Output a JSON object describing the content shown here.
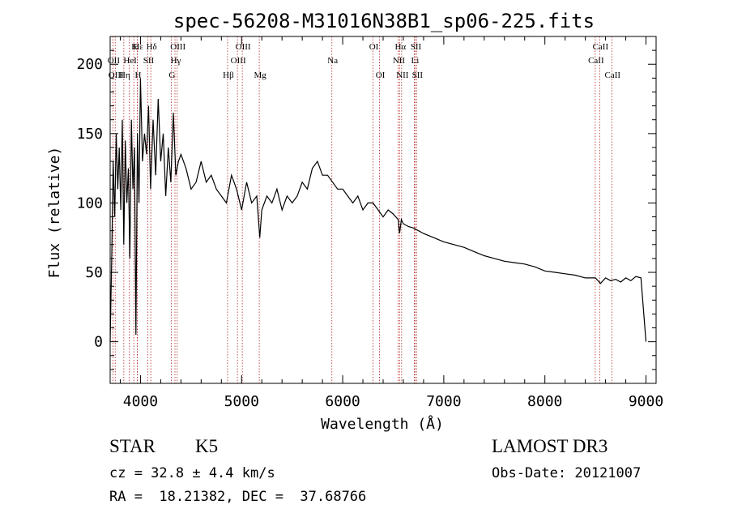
{
  "colors": {
    "axis": "#000000",
    "line": "#000000",
    "marker": "#b22222",
    "background": "#ffffff"
  },
  "info": {
    "object_class": "STAR",
    "subclass": "K5",
    "survey": "LAMOST DR3",
    "redshift": "cz = 32.8 ± 4.4 km/s",
    "obs_date": "Obs-Date: 20121007",
    "coords": "RA =  18.21382, DEC =  37.68766"
  },
  "chart_data": {
    "type": "line",
    "title": "spec-56208-M31016N38B1_sp06-225.fits",
    "xlabel": "Wavelength (Å)",
    "ylabel": "Flux (relative)",
    "xlim": [
      3700,
      9100
    ],
    "ylim": [
      -30,
      220
    ],
    "xticks": [
      4000,
      5000,
      6000,
      7000,
      8000,
      9000
    ],
    "xtick_labels": [
      "4000",
      "5000",
      "6000",
      "7000",
      "8000",
      "9000"
    ],
    "yticks": [
      0,
      50,
      100,
      150,
      200
    ],
    "ytick_labels": [
      "0",
      "50",
      "100",
      "150",
      "200"
    ],
    "grid": false,
    "series": [
      {
        "name": "spectrum",
        "x": [
          3700,
          3715,
          3730,
          3745,
          3760,
          3775,
          3790,
          3805,
          3820,
          3835,
          3850,
          3865,
          3880,
          3895,
          3910,
          3925,
          3940,
          3955,
          3970,
          3985,
          4000,
          4020,
          4040,
          4060,
          4080,
          4100,
          4125,
          4150,
          4175,
          4200,
          4225,
          4250,
          4275,
          4300,
          4325,
          4350,
          4375,
          4400,
          4450,
          4500,
          4550,
          4600,
          4650,
          4700,
          4750,
          4800,
          4850,
          4900,
          4950,
          5000,
          5050,
          5100,
          5150,
          5180,
          5200,
          5250,
          5300,
          5350,
          5400,
          5450,
          5500,
          5550,
          5600,
          5650,
          5700,
          5750,
          5800,
          5850,
          5900,
          5950,
          6000,
          6050,
          6100,
          6150,
          6200,
          6250,
          6300,
          6350,
          6400,
          6450,
          6500,
          6550,
          6563,
          6580,
          6600,
          6650,
          6700,
          6750,
          6800,
          6900,
          7000,
          7100,
          7200,
          7300,
          7400,
          7500,
          7600,
          7700,
          7800,
          7900,
          8000,
          8100,
          8200,
          8300,
          8400,
          8500,
          8550,
          8600,
          8650,
          8700,
          8750,
          8800,
          8850,
          8900,
          8950,
          9000
        ],
        "y": [
          0,
          60,
          130,
          90,
          150,
          110,
          140,
          95,
          160,
          70,
          145,
          100,
          125,
          60,
          160,
          110,
          140,
          5,
          150,
          100,
          190,
          130,
          150,
          135,
          170,
          110,
          160,
          120,
          175,
          130,
          150,
          105,
          140,
          115,
          165,
          120,
          130,
          135,
          125,
          110,
          115,
          130,
          115,
          120,
          110,
          105,
          100,
          120,
          110,
          95,
          115,
          100,
          105,
          75,
          95,
          105,
          100,
          110,
          95,
          105,
          100,
          105,
          115,
          110,
          125,
          130,
          120,
          120,
          115,
          110,
          110,
          105,
          100,
          105,
          95,
          100,
          100,
          95,
          90,
          95,
          92,
          88,
          78,
          88,
          85,
          83,
          82,
          80,
          78,
          75,
          72,
          70,
          68,
          65,
          62,
          60,
          58,
          57,
          56,
          54,
          51,
          50,
          49,
          48,
          46,
          46,
          42,
          46,
          44,
          45,
          43,
          46,
          44,
          47,
          46,
          0
        ]
      }
    ],
    "annotations": [
      {
        "label": "Hε",
        "x": 3970,
        "row": 1
      },
      {
        "label": "OII",
        "x": 3727,
        "row": 2
      },
      {
        "label": "OIII",
        "x": 3750,
        "row": 3
      },
      {
        "label": "K",
        "x": 3934,
        "row": 1
      },
      {
        "label": "Hη",
        "x": 3835,
        "row": 3
      },
      {
        "label": "HeI",
        "x": 3889,
        "row": 2
      },
      {
        "label": "SII",
        "x": 4072,
        "row": 2
      },
      {
        "label": "H",
        "x": 3968,
        "row": 3
      },
      {
        "label": "Hδ",
        "x": 4102,
        "row": 1
      },
      {
        "label": "OIII",
        "x": 4363,
        "row": 1
      },
      {
        "label": "Hγ",
        "x": 4341,
        "row": 2
      },
      {
        "label": "G",
        "x": 4304,
        "row": 3
      },
      {
        "label": "OIII",
        "x": 5007,
        "row": 1
      },
      {
        "label": "OIII",
        "x": 4959,
        "row": 2
      },
      {
        "label": "Hβ",
        "x": 4861,
        "row": 3
      },
      {
        "label": "Mg",
        "x": 5175,
        "row": 3
      },
      {
        "label": "Na",
        "x": 5893,
        "row": 2
      },
      {
        "label": "OI",
        "x": 6300,
        "row": 1
      },
      {
        "label": "OI",
        "x": 6364,
        "row": 3
      },
      {
        "label": "Hα",
        "x": 6563,
        "row": 1
      },
      {
        "label": "NII",
        "x": 6548,
        "row": 2
      },
      {
        "label": "NII",
        "x": 6583,
        "row": 3
      },
      {
        "label": "SII",
        "x": 6716,
        "row": 1
      },
      {
        "label": "Li",
        "x": 6708,
        "row": 2
      },
      {
        "label": "SII",
        "x": 6731,
        "row": 3
      },
      {
        "label": "CaII",
        "x": 8542,
        "row": 1
      },
      {
        "label": "CaII",
        "x": 8498,
        "row": 2
      },
      {
        "label": "CaII",
        "x": 8662,
        "row": 3
      }
    ]
  }
}
